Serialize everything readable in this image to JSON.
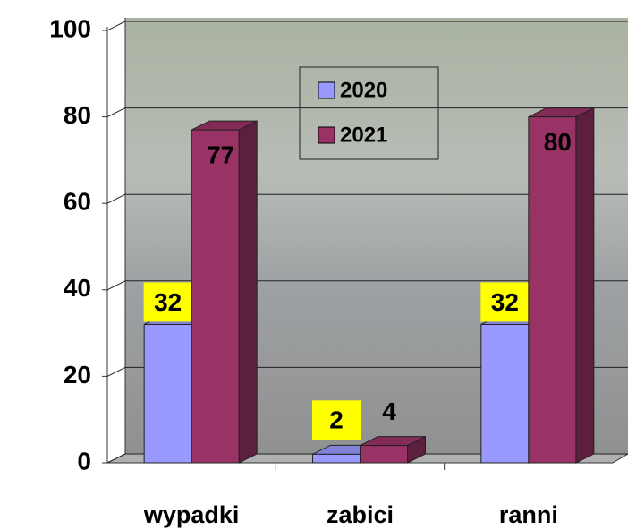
{
  "chart_data": {
    "type": "bar3d",
    "categories": [
      "wypadki",
      "zabici",
      "ranni"
    ],
    "series": [
      {
        "name": "2020",
        "color": "#9999ff",
        "values": [
          32,
          2,
          32
        ]
      },
      {
        "name": "2021",
        "color": "#993366",
        "values": [
          77,
          4,
          80
        ]
      }
    ],
    "ylim": [
      0,
      100
    ],
    "yticks": [
      0,
      20,
      40,
      60,
      80,
      100
    ],
    "grid": true,
    "legend": "top-center"
  }
}
